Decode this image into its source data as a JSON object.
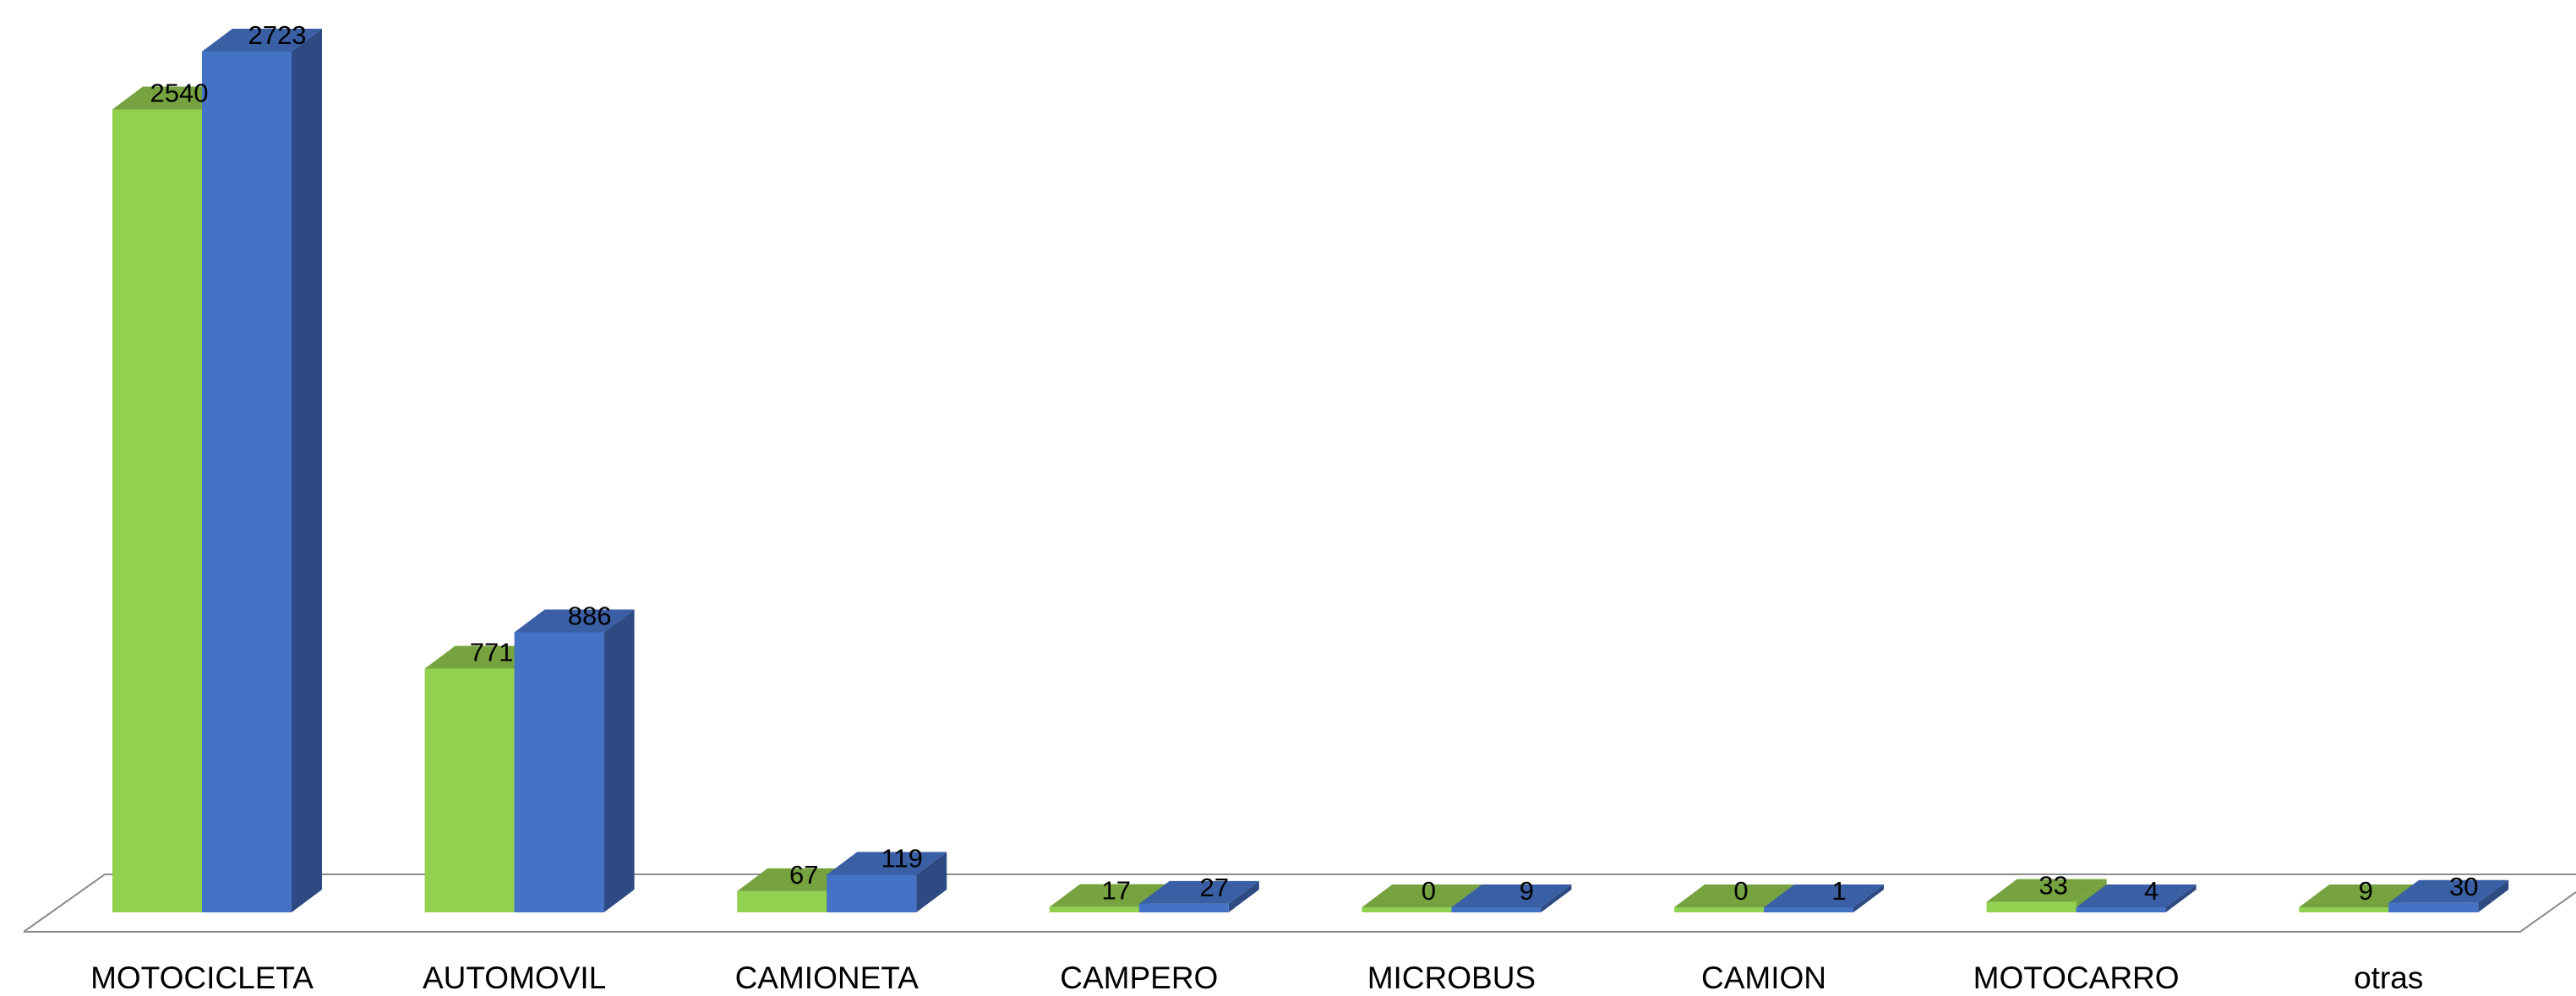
{
  "chart_data": {
    "type": "bar",
    "categories": [
      "MOTOCICLETA",
      "AUTOMOVIL",
      "CAMIONETA",
      "CAMPERO",
      "MICROBUS",
      "CAMION",
      "MOTOCARRO",
      "otras"
    ],
    "series": [
      {
        "values": [
          2540,
          771,
          67,
          17,
          0,
          0,
          33,
          9
        ]
      },
      {
        "values": [
          2723,
          886,
          119,
          27,
          9,
          1,
          4,
          30
        ]
      }
    ],
    "title": "",
    "xlabel": "",
    "ylabel": "",
    "ylim": [
      0,
      2723
    ],
    "grid": false,
    "legend": "none",
    "style": "3d-clustered-column",
    "colors": {
      "series1_front": "#92D050",
      "series1_top": "#76A33F",
      "series2_front": "#4472C4",
      "series2_top": "#3A5FA5",
      "series2_side": "#2E4A82",
      "floor_line": "#8C8C8C"
    }
  }
}
